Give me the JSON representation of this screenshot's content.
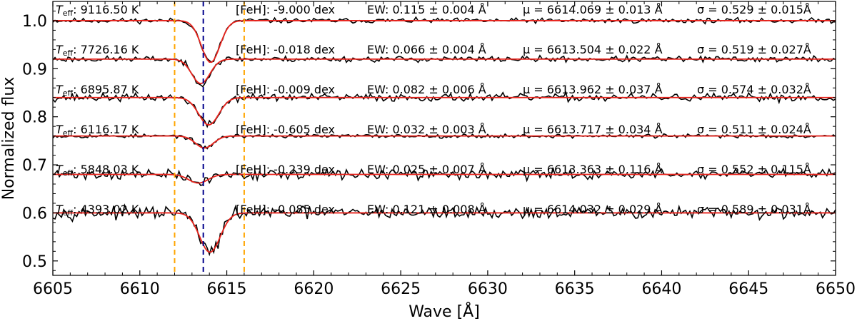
{
  "chart_data": {
    "type": "line",
    "title": "",
    "xlabel": "Wave [Å]",
    "ylabel": "Normalized flux",
    "xlim": [
      6605,
      6650
    ],
    "ylim": [
      0.47,
      1.04
    ],
    "grid": false,
    "x_ticks": [
      6605,
      6610,
      6615,
      6620,
      6625,
      6630,
      6635,
      6640,
      6645,
      6650
    ],
    "y_ticks": [
      0.5,
      0.6,
      0.7,
      0.8,
      0.9,
      1.0
    ],
    "x_tick_labels": [
      "6605",
      "6610",
      "6615",
      "6620",
      "6625",
      "6630",
      "6635",
      "6640",
      "6645",
      "6650"
    ],
    "y_tick_labels": [
      "0.5",
      "0.6",
      "0.7",
      "0.8",
      "0.9",
      "1.0"
    ],
    "vlines": [
      {
        "x": 6612.0,
        "color": "#ffa500",
        "style": "dashed"
      },
      {
        "x": 6613.65,
        "color": "#00008b",
        "style": "dashed"
      },
      {
        "x": 6616.0,
        "color": "#ffa500",
        "style": "dashed"
      }
    ],
    "colors": {
      "observed": "#000000",
      "fit": "#e8221b"
    },
    "teff_prefix": "T",
    "teff_subscript": "eff",
    "series": [
      {
        "teff": ": 9116.50 K",
        "feh": "[FeH]: -9.000 dex",
        "ew": "EW: 0.115 ± 0.004 Å",
        "mu": "μ = 6614.069 ± 0.013 Å",
        "sigma": "σ = 0.529 ± 0.015Å",
        "continuum": 1.0,
        "mu_value": 6614.069,
        "sigma_value": 0.529,
        "depth": 0.087,
        "noise": 0.0025,
        "seed": 11
      },
      {
        "teff": ": 7726.16 K",
        "feh": "[FeH]: -0.018 dex",
        "ew": "EW: 0.066 ± 0.004 Å",
        "mu": "μ = 6613.504 ± 0.022 Å",
        "sigma": "σ = 0.519 ± 0.027Å",
        "continuum": 0.92,
        "mu_value": 6613.504,
        "sigma_value": 0.519,
        "depth": 0.051,
        "noise": 0.003,
        "seed": 23
      },
      {
        "teff": ": 6895.87 K",
        "feh": "[FeH]: -0.009 dex",
        "ew": "EW: 0.082 ± 0.006 Å",
        "mu": "μ = 6613.962 ± 0.037 Å",
        "sigma": "σ = 0.574 ± 0.032Å",
        "continuum": 0.84,
        "mu_value": 6613.962,
        "sigma_value": 0.574,
        "depth": 0.057,
        "noise": 0.004,
        "seed": 37
      },
      {
        "teff": ": 6116.17 K",
        "feh": "[FeH]: -0.605 dex",
        "ew": "EW: 0.032 ± 0.003 Å",
        "mu": "μ = 6613.717 ± 0.034 Å",
        "sigma": "σ = 0.511 ± 0.024Å",
        "continuum": 0.76,
        "mu_value": 6613.717,
        "sigma_value": 0.511,
        "depth": 0.025,
        "noise": 0.002,
        "seed": 53
      },
      {
        "teff": ": 5848.03 K",
        "feh": "[FeH]: -0.239 dex",
        "ew": "EW: 0.025 ± 0.007 Å",
        "mu": "μ = 6613.363 ± 0.116 Å",
        "sigma": "σ = 0.552 ± 0.115Å",
        "continuum": 0.68,
        "mu_value": 6613.363,
        "sigma_value": 0.552,
        "depth": 0.018,
        "noise": 0.005,
        "seed": 71
      },
      {
        "teff": ": 4393.02 K",
        "feh": "[FeH]: -0.085 dex",
        "ew": "EW: 0.121 ± 0.008 Å",
        "mu": "μ = 6614.032 ± 0.029 Å",
        "sigma": "σ = 0.589 ± 0.031Å",
        "continuum": 0.6,
        "mu_value": 6614.032,
        "sigma_value": 0.589,
        "depth": 0.082,
        "noise": 0.006,
        "seed": 97
      }
    ]
  }
}
